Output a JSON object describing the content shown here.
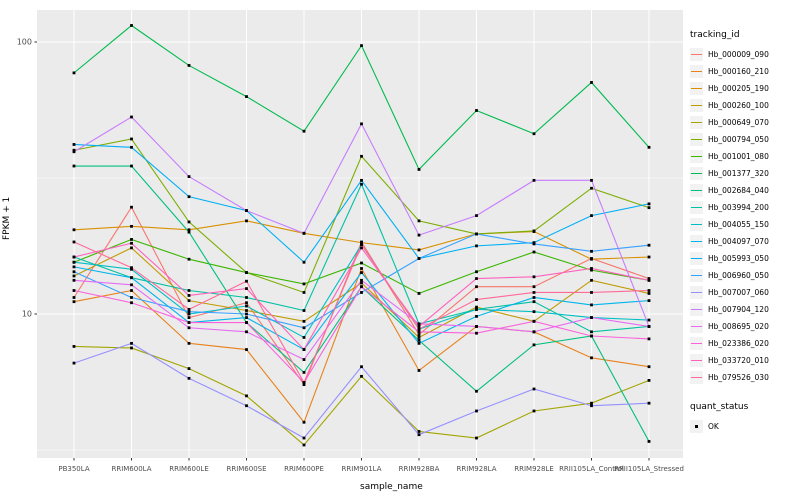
{
  "chart_data": {
    "type": "line",
    "title": "",
    "xlabel": "sample_name",
    "ylabel": "FPKM + 1",
    "y_scale": "log10",
    "y_tick_labels": [
      "100",
      "10"
    ],
    "y_tick_values": [
      100,
      10
    ],
    "ylim_approx": [
      2.9,
      131
    ],
    "grid": "on",
    "panel_background": "#EBEBEB",
    "gridline_color": "#FFFFFF",
    "point_color": "#000000",
    "legend_position": "right",
    "categories": [
      "PB350LA",
      "RRIM600LA",
      "RRIM600LE",
      "RRIM600SE",
      "RRIM600PE",
      "RRIM901LA",
      "RRIM928BA",
      "RRIM928LA",
      "RRIM928LE",
      "RRII105LA_Control",
      "RRII105LA_Stressed"
    ],
    "series": [
      {
        "name": "Hb_000009_090",
        "color": "#F8766D",
        "values": [
          11.5,
          24.7,
          9.7,
          11.0,
          5.5,
          18.4,
          8.4,
          12.6,
          12.6,
          16.0,
          13.5
        ]
      },
      {
        "name": "Hb_000160_210",
        "color": "#E8821D",
        "values": [
          11.1,
          12.2,
          7.8,
          7.4,
          4.0,
          14.7,
          6.2,
          9.0,
          8.6,
          6.9,
          6.4
        ]
      },
      {
        "name": "Hb_000205_190",
        "color": "#D89000",
        "values": [
          20.4,
          21.0,
          20.4,
          22.0,
          19.8,
          18.3,
          17.2,
          19.7,
          20.1,
          15.9,
          16.2
        ]
      },
      {
        "name": "Hb_000260_100",
        "color": "#C09B00",
        "values": [
          13.8,
          17.5,
          11.2,
          10.3,
          9.4,
          13.0,
          8.2,
          10.6,
          9.4,
          13.3,
          11.9
        ]
      },
      {
        "name": "Hb_000649_070",
        "color": "#A3A500",
        "values": [
          7.6,
          7.5,
          6.3,
          5.0,
          3.3,
          5.9,
          3.7,
          3.5,
          4.4,
          4.7,
          5.7
        ]
      },
      {
        "name": "Hb_000794_050",
        "color": "#7CAE00",
        "values": [
          40,
          44,
          21.8,
          14.2,
          12.0,
          38,
          22.0,
          19.7,
          20.2,
          29,
          24.6
        ]
      },
      {
        "name": "Hb_001001_080",
        "color": "#39B600",
        "values": [
          15.5,
          18.8,
          15.9,
          14.2,
          12.9,
          15.4,
          11.9,
          14.3,
          16.9,
          14.5,
          13.3
        ]
      },
      {
        "name": "Hb_001377_320",
        "color": "#00BB4E",
        "values": [
          77,
          115,
          82,
          63,
          47,
          97,
          34,
          56,
          46,
          71,
          41
        ]
      },
      {
        "name": "Hb_002684_040",
        "color": "#00BF7D",
        "values": [
          35,
          35,
          20.0,
          9.3,
          6.1,
          12.6,
          8.0,
          5.2,
          7.7,
          8.3,
          3.4
        ]
      },
      {
        "name": "Hb_003994_200",
        "color": "#00C1A3",
        "values": [
          16.2,
          13.6,
          12.2,
          11.5,
          10.3,
          30,
          9.2,
          10.4,
          11.1,
          8.6,
          9.0
        ]
      },
      {
        "name": "Hb_004055_150",
        "color": "#00BFC4",
        "values": [
          15.5,
          14.6,
          10.0,
          10.7,
          8.2,
          18.0,
          8.8,
          10.4,
          10.2,
          9.7,
          9.5
        ]
      },
      {
        "name": "Hb_004097_070",
        "color": "#00B5EB",
        "values": [
          14.9,
          13.6,
          9.3,
          9.7,
          7.4,
          14.2,
          7.8,
          9.8,
          11.5,
          10.8,
          11.2
        ]
      },
      {
        "name": "Hb_005993_050",
        "color": "#00B0F6",
        "values": [
          42,
          41,
          27,
          24,
          15.5,
          31,
          16.0,
          17.8,
          18.3,
          23,
          25.4
        ]
      },
      {
        "name": "Hb_006960_050",
        "color": "#35A2FF",
        "values": [
          14.3,
          11.5,
          10.2,
          10.0,
          8.9,
          12.0,
          16.0,
          19.7,
          18.1,
          17.0,
          17.9
        ]
      },
      {
        "name": "Hb_007007_060",
        "color": "#9590FF",
        "values": [
          6.6,
          7.8,
          5.8,
          4.6,
          3.5,
          6.4,
          3.6,
          4.4,
          5.3,
          4.6,
          4.7
        ]
      },
      {
        "name": "Hb_007904_120",
        "color": "#C77CFF",
        "values": [
          39.5,
          53,
          32,
          24,
          19.8,
          50,
          19.5,
          23,
          31,
          31,
          9.0
        ]
      },
      {
        "name": "Hb_008695_020",
        "color": "#E76BF3",
        "values": [
          13.3,
          12.8,
          8.9,
          8.6,
          6.8,
          13.3,
          9.2,
          9.0,
          8.6,
          9.7,
          9.0
        ]
      },
      {
        "name": "Hb_023386_020",
        "color": "#FA62DB",
        "values": [
          12.2,
          11.0,
          9.3,
          9.3,
          5.6,
          12.6,
          8.6,
          8.5,
          9.4,
          8.3,
          8.1
        ]
      },
      {
        "name": "Hb_033720_010",
        "color": "#FF62BC",
        "values": [
          16.2,
          18.2,
          11.7,
          12.4,
          7.4,
          17.5,
          9.0,
          13.5,
          13.7,
          14.7,
          13.3
        ]
      },
      {
        "name": "Hb_079526_030",
        "color": "#FF6A98",
        "values": [
          18.4,
          14.8,
          10.4,
          13.2,
          5.6,
          18.0,
          8.8,
          11.3,
          12.0,
          12.0,
          12.2
        ]
      }
    ]
  },
  "axes": {
    "x_title": "sample_name",
    "y_title": "FPKM + 1"
  },
  "legend": {
    "tracking_title": "tracking_id",
    "quant_title": "quant_status",
    "quant_value": "OK"
  }
}
